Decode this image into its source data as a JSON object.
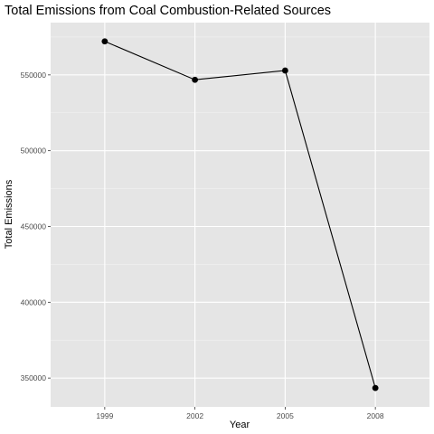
{
  "chart_data": {
    "type": "line",
    "title": "Total Emissions from Coal Combustion-Related Sources",
    "xlabel": "Year",
    "ylabel": "Total Emissions",
    "x": [
      "1999",
      "2002",
      "2005",
      "2008"
    ],
    "values": [
      572126,
      546789,
      552881,
      343432
    ],
    "yticks": [
      350000,
      400000,
      450000,
      500000,
      550000
    ],
    "ylim": [
      331000,
      584500
    ],
    "grid": true,
    "legend": "none",
    "colors": {
      "panel": "#e5e5e5",
      "grid_major": "#ffffff",
      "line": "#000000",
      "point": "#000000"
    }
  }
}
